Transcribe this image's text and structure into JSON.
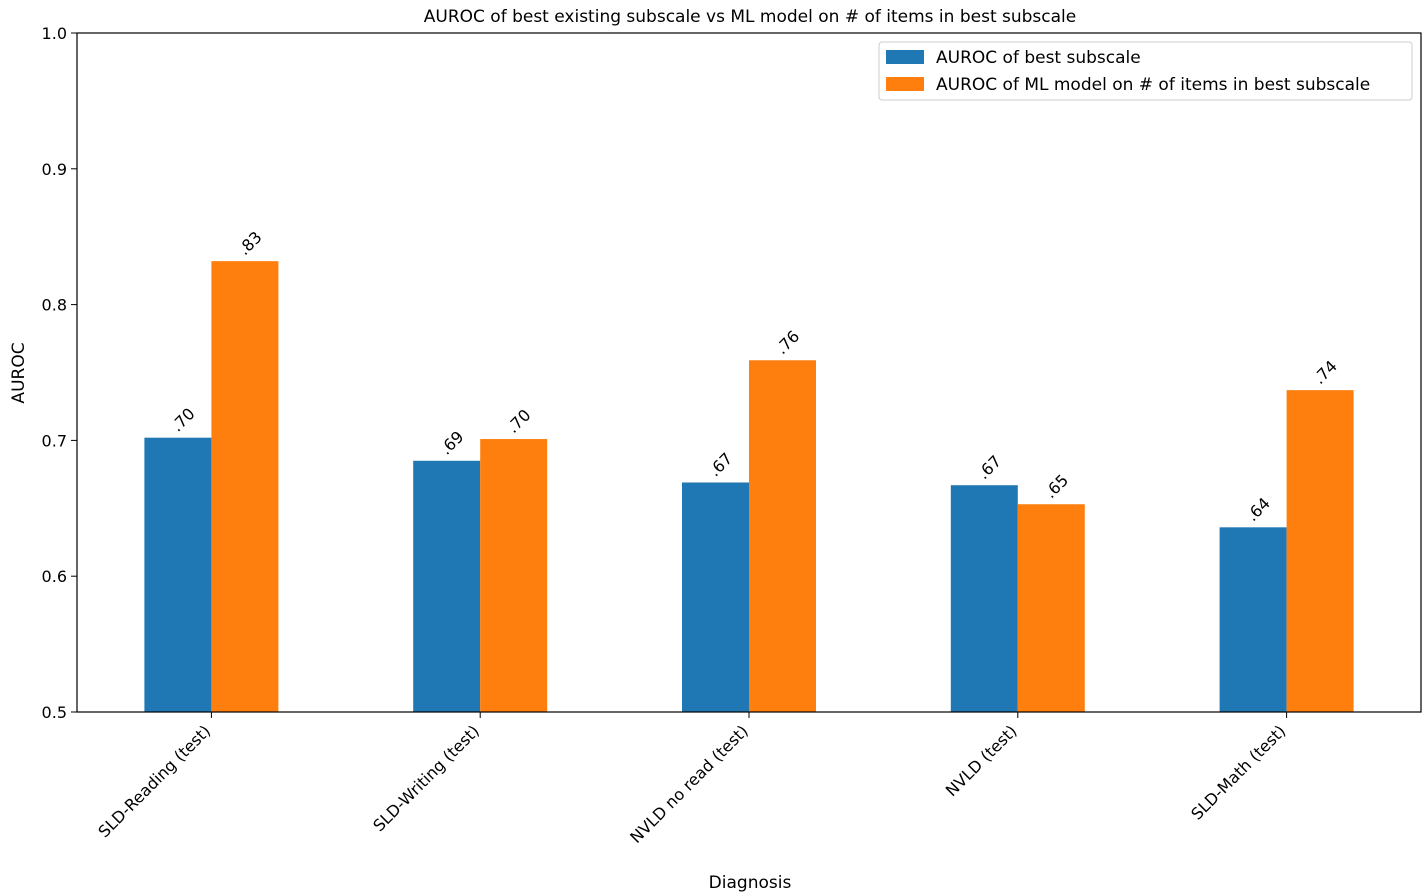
{
  "chart_data": {
    "type": "bar",
    "title": "AUROC of best existing subscale vs ML model on # of items in best subscale",
    "xlabel": "Diagnosis",
    "ylabel": "AUROC",
    "ylim": [
      0.5,
      1.0
    ],
    "yticks": [
      0.5,
      0.6,
      0.7,
      0.8,
      0.9,
      1.0
    ],
    "ytick_labels": [
      "0.5",
      "0.6",
      "0.7",
      "0.8",
      "0.9",
      "1.0"
    ],
    "categories": [
      "SLD-Reading (test)",
      "SLD-Writing (test)",
      "NVLD no read (test)",
      "NVLD (test)",
      "SLD-Math (test)"
    ],
    "series": [
      {
        "name": "AUROC of best subscale",
        "color": "#1f77b4",
        "values": [
          0.702,
          0.685,
          0.669,
          0.667,
          0.636
        ],
        "labels": [
          ".70",
          ".69",
          ".67",
          ".67",
          ".64"
        ]
      },
      {
        "name": "AUROC of ML model on # of items in best subscale",
        "color": "#ff7f0e",
        "values": [
          0.832,
          0.701,
          0.759,
          0.653,
          0.737
        ],
        "labels": [
          ".83",
          ".70",
          ".76",
          ".65",
          ".74"
        ]
      }
    ],
    "grid": false,
    "legend_position": "top-right"
  }
}
